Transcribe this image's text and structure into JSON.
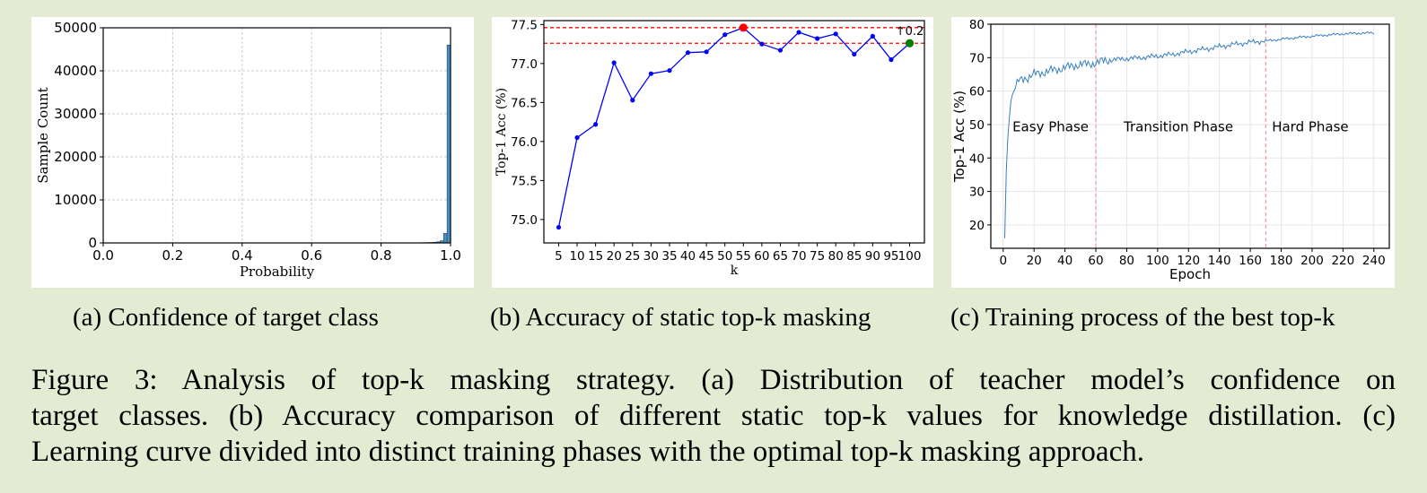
{
  "subcaptions": {
    "a": "(a) Confidence of target class",
    "b": "(b) Accuracy of static top-k masking",
    "c": "(c) Training process of the best top-k"
  },
  "caption_lines": [
    "Figure 3: Analysis of top-k masking strategy. (a) Distribution of teacher model’s confidence on",
    "target classes. (b) Accuracy comparison of different static top-k values for knowledge distillation. (c)",
    "Learning curve divided into distinct training phases with the optimal top-k masking approach."
  ],
  "colors": {
    "hist_fill": "#4a8fc2",
    "line_blue": "#0000ff",
    "curve_blue": "#3a7fbf",
    "ref_red": "#ff0000",
    "phase_red": "#f08080",
    "best_point": "#ff0000",
    "last_point": "#008000"
  },
  "chart_data": [
    {
      "type": "bar",
      "xlabel": "Probability",
      "ylabel": "Sample Count",
      "xlim": [
        0.0,
        1.0
      ],
      "ylim": [
        0,
        50000
      ],
      "x_ticks": [
        "0.0",
        "0.2",
        "0.4",
        "0.6",
        "0.8",
        "1.0"
      ],
      "y_ticks": [
        "0",
        "10000",
        "20000",
        "30000",
        "40000",
        "50000"
      ],
      "grid": true,
      "bins": [
        {
          "x0": 0.9,
          "x1": 0.91,
          "value": 40
        },
        {
          "x0": 0.91,
          "x1": 0.92,
          "value": 50
        },
        {
          "x0": 0.92,
          "x1": 0.93,
          "value": 60
        },
        {
          "x0": 0.93,
          "x1": 0.94,
          "value": 80
        },
        {
          "x0": 0.94,
          "x1": 0.95,
          "value": 110
        },
        {
          "x0": 0.95,
          "x1": 0.96,
          "value": 150
        },
        {
          "x0": 0.96,
          "x1": 0.97,
          "value": 250
        },
        {
          "x0": 0.97,
          "x1": 0.98,
          "value": 500
        },
        {
          "x0": 0.98,
          "x1": 0.99,
          "value": 2200
        },
        {
          "x0": 0.99,
          "x1": 1.0,
          "value": 46000
        }
      ]
    },
    {
      "type": "line",
      "xlabel": "k",
      "ylabel": "Top-1 Acc (%)",
      "categories": [
        "5",
        "10",
        "15",
        "20",
        "25",
        "30",
        "35",
        "40",
        "45",
        "50",
        "55",
        "60",
        "65",
        "70",
        "75",
        "80",
        "85",
        "90",
        "95",
        "100"
      ],
      "values": [
        74.9,
        76.05,
        76.22,
        77.01,
        76.53,
        76.87,
        76.91,
        77.14,
        77.15,
        77.37,
        77.46,
        77.25,
        77.17,
        77.4,
        77.32,
        77.38,
        77.12,
        77.35,
        77.05,
        77.26
      ],
      "ylim": [
        74.7,
        77.55
      ],
      "y_ticks": [
        "75.0",
        "75.5",
        "76.0",
        "76.5",
        "77.0",
        "77.5"
      ],
      "reference_lines": [
        77.46,
        77.26
      ],
      "best_index": 10,
      "highlight_index": 19,
      "annotation": "↑0.2",
      "grid": false
    },
    {
      "type": "line",
      "xlabel": "Epoch",
      "ylabel": "Top-1 Acc (%)",
      "xlim": [
        -8,
        250
      ],
      "ylim": [
        13,
        80
      ],
      "x_ticks": [
        "0",
        "20",
        "40",
        "60",
        "80",
        "100",
        "120",
        "140",
        "160",
        "180",
        "200",
        "220",
        "240"
      ],
      "y_ticks": [
        "20",
        "30",
        "40",
        "50",
        "60",
        "70",
        "80"
      ],
      "grid": true,
      "phase_boundaries": [
        60,
        170
      ],
      "phases": [
        "Easy Phase",
        "Transition Phase",
        "Hard Phase"
      ],
      "x": [
        1,
        2,
        3,
        4,
        5,
        6,
        7,
        8,
        9,
        10,
        12,
        14,
        16,
        18,
        20,
        25,
        30,
        35,
        40,
        45,
        50,
        55,
        60,
        65,
        70,
        80,
        90,
        100,
        110,
        120,
        130,
        140,
        150,
        160,
        170,
        180,
        190,
        200,
        210,
        220,
        230,
        240
      ],
      "y": [
        16,
        36,
        46,
        52,
        57,
        59,
        60,
        61,
        62,
        63,
        63.5,
        64,
        64,
        64.5,
        65,
        65.5,
        66,
        66.5,
        67,
        67.5,
        68,
        68,
        68.5,
        69,
        69.3,
        69.7,
        70,
        70.5,
        71,
        71.8,
        72.5,
        73.3,
        74,
        74.6,
        75,
        75.5,
        76,
        76.4,
        76.8,
        77.1,
        77.3,
        77.4
      ]
    }
  ]
}
